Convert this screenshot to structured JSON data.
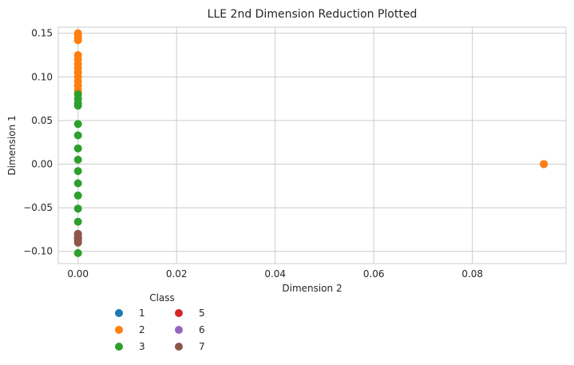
{
  "chart_data": {
    "type": "scatter",
    "title": "LLE 2nd Dimension Reduction Plotted",
    "xlabel": "Dimension 2",
    "ylabel": "Dimension 1",
    "xlim": [
      -0.004,
      0.099
    ],
    "ylim": [
      -0.114,
      0.157
    ],
    "x_ticks": [
      0.0,
      0.02,
      0.04,
      0.06,
      0.08
    ],
    "x_tick_labels": [
      "0.00",
      "0.02",
      "0.04",
      "0.06",
      "0.08"
    ],
    "y_ticks": [
      -0.1,
      -0.05,
      0.0,
      0.05,
      0.1,
      0.15
    ],
    "y_tick_labels": [
      "−0.10",
      "−0.05",
      "0.00",
      "0.05",
      "0.10",
      "0.15"
    ],
    "grid": true,
    "legend": {
      "title": "Class",
      "placement": "below-left",
      "columns": 2
    },
    "series": [
      {
        "name": "1",
        "color": "#1f77b4",
        "points": [
          [
            0.0945,
            0.0
          ]
        ]
      },
      {
        "name": "2",
        "color": "#ff7f0e",
        "points": [
          [
            0.0,
            0.15
          ],
          [
            0.0,
            0.148
          ],
          [
            0.0,
            0.145
          ],
          [
            0.0,
            0.142
          ],
          [
            0.0,
            0.125
          ],
          [
            0.0,
            0.12
          ],
          [
            0.0,
            0.115
          ],
          [
            0.0,
            0.11
          ],
          [
            0.0,
            0.105
          ],
          [
            0.0,
            0.1
          ],
          [
            0.0,
            0.095
          ],
          [
            0.0,
            0.09
          ],
          [
            0.0,
            0.085
          ],
          [
            0.0,
            0.082
          ],
          [
            0.0945,
            0.0
          ]
        ]
      },
      {
        "name": "3",
        "color": "#2ca02c",
        "points": [
          [
            0.0,
            0.08
          ],
          [
            0.0,
            0.075
          ],
          [
            0.0,
            0.07
          ],
          [
            0.0,
            0.067
          ],
          [
            0.0,
            0.046
          ],
          [
            0.0,
            0.033
          ],
          [
            0.0,
            0.018
          ],
          [
            0.0,
            0.005
          ],
          [
            0.0,
            -0.008
          ],
          [
            0.0,
            -0.022
          ],
          [
            0.0,
            -0.036
          ],
          [
            0.0,
            -0.051
          ],
          [
            0.0,
            -0.066
          ],
          [
            0.0,
            -0.08
          ],
          [
            0.0,
            -0.102
          ]
        ]
      },
      {
        "name": "5",
        "color": "#d62728",
        "points": [
          [
            0.0,
            -0.085
          ]
        ]
      },
      {
        "name": "6",
        "color": "#9467bd",
        "points": [
          [
            0.0,
            -0.086
          ]
        ]
      },
      {
        "name": "7",
        "color": "#8c564b",
        "points": [
          [
            0.0,
            -0.08
          ],
          [
            0.0,
            -0.082
          ],
          [
            0.0,
            -0.084
          ],
          [
            0.0,
            -0.086
          ],
          [
            0.0,
            -0.088
          ],
          [
            0.0,
            -0.09
          ]
        ]
      }
    ],
    "legend_entries": [
      {
        "label": "1",
        "color": "#1f77b4"
      },
      {
        "label": "2",
        "color": "#ff7f0e"
      },
      {
        "label": "3",
        "color": "#2ca02c"
      },
      {
        "label": "5",
        "color": "#d62728"
      },
      {
        "label": "6",
        "color": "#9467bd"
      },
      {
        "label": "7",
        "color": "#8c564b"
      }
    ]
  }
}
